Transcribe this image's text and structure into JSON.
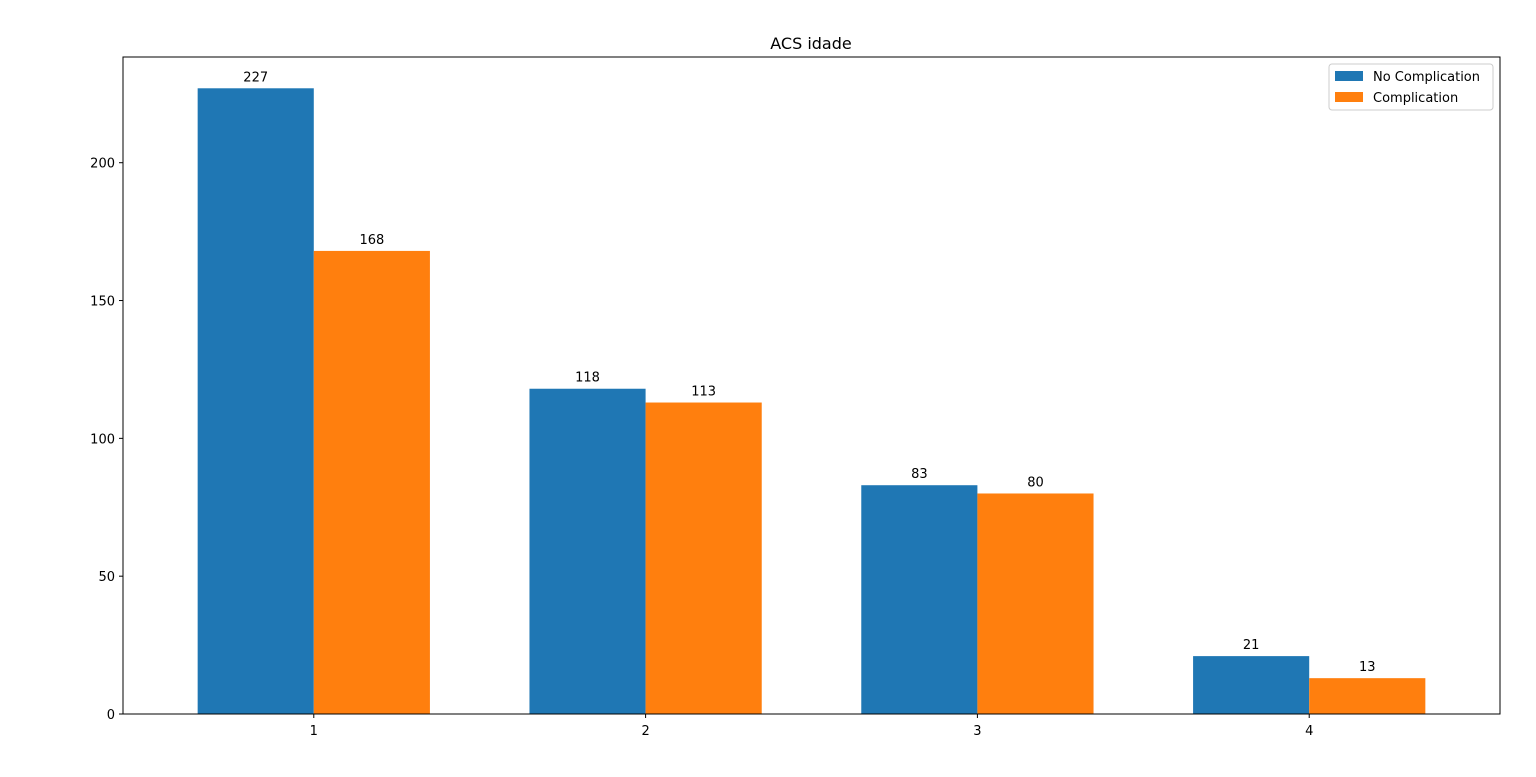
{
  "chart_data": {
    "type": "bar",
    "title": "ACS idade",
    "xlabel": "",
    "ylabel": "",
    "categories": [
      "1",
      "2",
      "3",
      "4"
    ],
    "series": [
      {
        "name": "No Complication",
        "values": [
          227,
          118,
          83,
          21
        ],
        "color": "#1f77b4"
      },
      {
        "name": "Complication",
        "values": [
          168,
          113,
          80,
          13
        ],
        "color": "#ff7f0e"
      }
    ],
    "ylim": [
      0,
      238.35
    ],
    "yticks": [
      0,
      50,
      100,
      150,
      200
    ],
    "grid": false,
    "legend_position": "top-right",
    "data_labels": true
  }
}
